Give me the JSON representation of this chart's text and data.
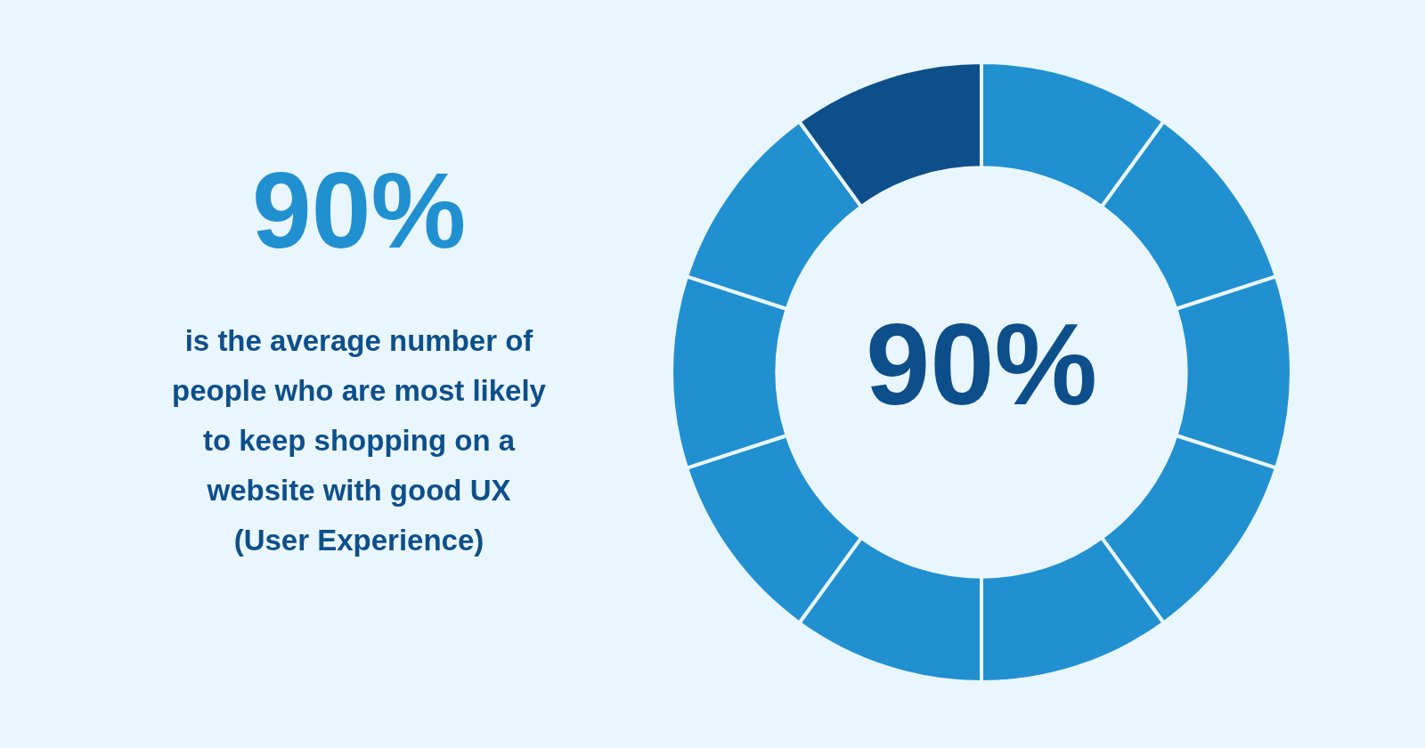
{
  "chart_data": {
    "type": "donut",
    "title": "90%",
    "subtitle": "is the average number of people who are most likely to keep shopping on a website with good UX (User Experience)",
    "categories": [
      null,
      null,
      null,
      null,
      null,
      null,
      null,
      null,
      null,
      null
    ],
    "values": [
      10,
      10,
      10,
      10,
      10,
      10,
      10,
      10,
      10,
      10
    ],
    "colors": [
      "#2190d0",
      "#2190d0",
      "#2190d0",
      "#2190d0",
      "#2190d0",
      "#2190d0",
      "#2190d0",
      "#2190d0",
      "#2190d0",
      "#0d4f8b"
    ],
    "annotations": [
      "90%"
    ],
    "legend": false
  }
}
